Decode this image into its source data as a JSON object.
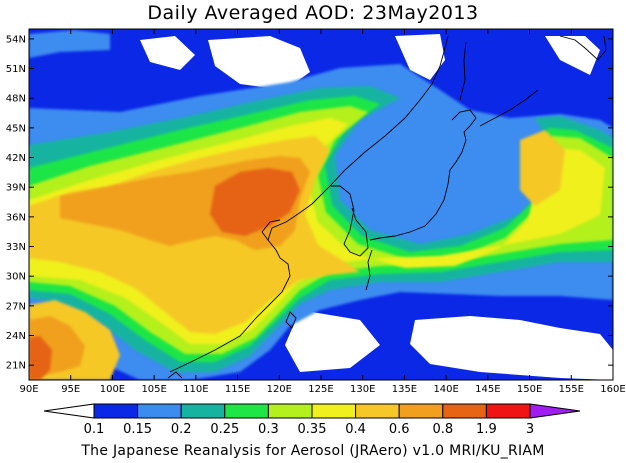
{
  "title": "Daily Averaged AOD: 23May2013",
  "footer": "The Japanese Reanalysis for Aerosol (JRAero) v1.0 MRI/KU_RIAM",
  "map": {
    "lon_range": [
      90,
      160
    ],
    "lat_range": [
      19.5,
      55
    ],
    "lon_ticks": [
      "90E",
      "95E",
      "100E",
      "105E",
      "110E",
      "115E",
      "120E",
      "125E",
      "130E",
      "135E",
      "140E",
      "145E",
      "150E",
      "155E",
      "160E"
    ],
    "lat_ticks": [
      "54N",
      "51N",
      "48N",
      "45N",
      "42N",
      "39N",
      "36N",
      "33N",
      "30N",
      "27N",
      "24N",
      "21N"
    ],
    "lat_tick_values": [
      54,
      51,
      48,
      45,
      42,
      39,
      36,
      33,
      30,
      27,
      24,
      21
    ],
    "lon_tick_values": [
      90,
      95,
      100,
      105,
      110,
      115,
      120,
      125,
      130,
      135,
      140,
      145,
      150,
      155,
      160
    ]
  },
  "colorbar": {
    "labels": [
      "0.1",
      "0.15",
      "0.2",
      "0.25",
      "0.3",
      "0.35",
      "0.4",
      "0.6",
      "0.8",
      "1.9",
      "3"
    ],
    "colors": [
      "#ffffff",
      "#0a28e6",
      "#3c8cf0",
      "#16b4a0",
      "#1ee646",
      "#b4f01e",
      "#f0f01e",
      "#f5c828",
      "#f0a01e",
      "#e66414",
      "#f01414",
      "#a01ef0"
    ]
  },
  "legend_colors": {
    "white": "#ffffff",
    "blue": "#0a28e6",
    "lightblue": "#3c8cf0",
    "teal": "#16b4a0",
    "green": "#1ee646",
    "yellowgreen": "#b4f01e",
    "yellow": "#f0f01e",
    "lightorange": "#f5c828",
    "orange": "#f0a01e",
    "darkorange": "#e66414",
    "red": "#f01414",
    "purple": "#a01ef0"
  }
}
